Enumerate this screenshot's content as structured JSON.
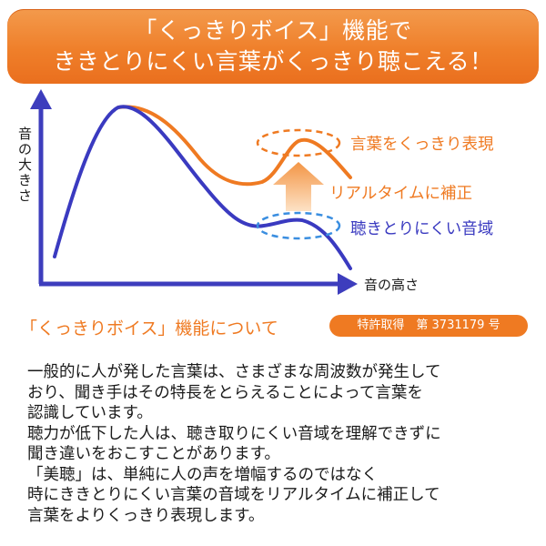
{
  "banner": {
    "line1": "「くっきりボイス」機能で",
    "line2": "ききとりにくい言葉がくっきり聴こえる！"
  },
  "diagram": {
    "y_axis_label": "音の大きさ",
    "x_axis_label": "音の高さ",
    "label_enhanced": "言葉をくっきり表現",
    "label_correction": "リアルタイムに補正",
    "label_hard_range": "聴きとりにくい音域",
    "colors": {
      "axis": "#3d3dbd",
      "original_curve": "#3a3ac0",
      "enhanced_curve": "#ef7a22",
      "arrow": "#f5a25a"
    }
  },
  "section": {
    "title": "「くっきりボイス」機能について",
    "patent": "特許取得　第 3731179 号"
  },
  "body": {
    "lines": [
      "一般的に人が発した言葉は、さまざまな周波数が発生して",
      "おり、聞き手はその特長をとらえることによって言葉を",
      "認識しています。",
      "聴力が低下した人は、聴き取りにくい音域を理解できずに",
      "聞き違いをおこすことがあります。",
      "「美聴」は、単純に人の声を増幅するのではなく",
      "時にききとりにくい言葉の音域をリアルタイムに補正して",
      "言葉をよりくっきり表現します。"
    ]
  }
}
